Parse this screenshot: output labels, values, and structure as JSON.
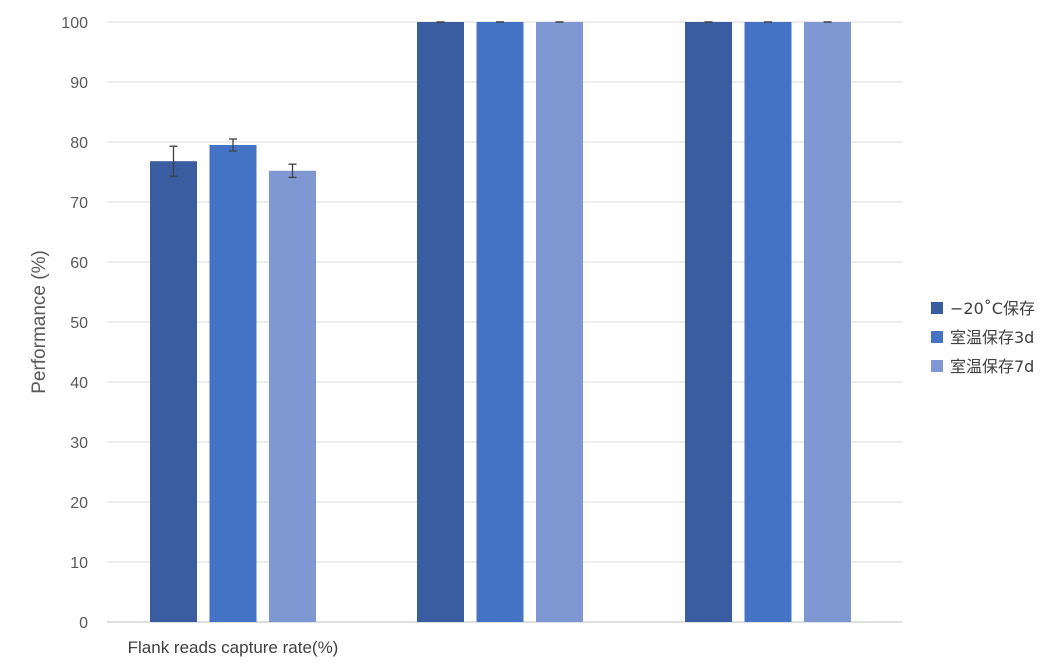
{
  "chart_data": {
    "type": "bar",
    "title": "",
    "ylabel": "Performance (%)",
    "xlabel": "",
    "ylim": [
      0,
      100
    ],
    "yticks": [
      0,
      10,
      20,
      30,
      40,
      50,
      60,
      70,
      80,
      90,
      100
    ],
    "categories": [
      "Flank reads capture rate(%)",
      "",
      ""
    ],
    "series": [
      {
        "name": "−20˚C保存",
        "color": "#3a5ca0",
        "values": [
          76.8,
          100,
          100
        ],
        "errors": [
          2.5,
          0,
          0
        ]
      },
      {
        "name": "室温保存3d",
        "color": "#4472c4",
        "values": [
          79.5,
          100,
          100
        ],
        "errors": [
          1.0,
          0,
          0
        ]
      },
      {
        "name": "室温保存7d",
        "color": "#7f98d4",
        "values": [
          75.2,
          100,
          100
        ],
        "errors": [
          1.1,
          0,
          0
        ]
      }
    ],
    "grid": true,
    "legend_position": "right"
  }
}
